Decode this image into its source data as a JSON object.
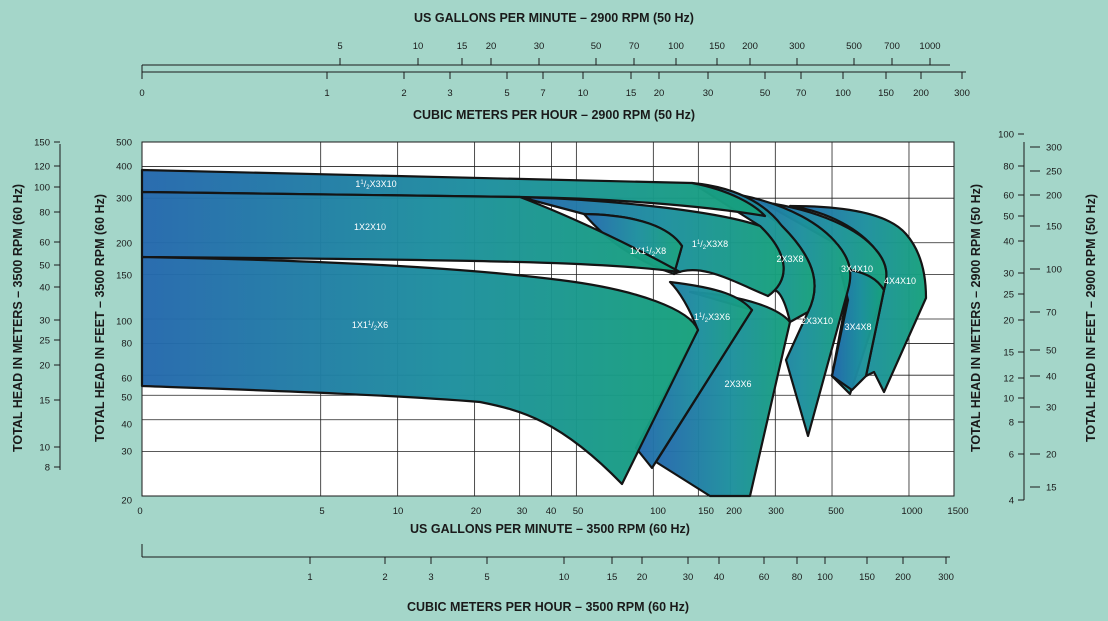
{
  "chart_data": {
    "type": "area",
    "xlabel_bottom": "US GALLONS PER MINUTE – 3500 RPM (60 Hz)",
    "xlabel_bottom_metric": "CUBIC METERS PER HOUR – 3500 RPM (60 Hz)",
    "xlabel_top": "US GALLONS PER MINUTE – 2900 RPM (50 Hz)",
    "xlabel_top_metric": "CUBIC METERS PER HOUR – 2900 RPM (50 Hz)",
    "ylabel_left_feet": "TOTAL HEAD IN FEET – 3500 RPM (60 Hz)",
    "ylabel_left_meters": "TOTAL HEAD IN METERS – 3500 RPM (60 Hz)",
    "ylabel_right_meters": "TOTAL HEAD IN METERS – 2900 RPM (50 Hz)",
    "ylabel_right_feet": "TOTAL HEAD IN FEET – 2900 RPM (50 Hz)",
    "x_scale": "log",
    "y_scale": "log",
    "xlim_gpm": [
      1,
      1500
    ],
    "ylim_feet": [
      20,
      500
    ],
    "grid": true,
    "colors": {
      "gradient_start": "#2468ad",
      "gradient_end": "#16a17b",
      "background": "#a4d6c9"
    },
    "ticks": {
      "gpm_60": [
        "0",
        "5",
        "10",
        "20",
        "30",
        "40",
        "50",
        "100",
        "150",
        "200",
        "300",
        "500",
        "1000",
        "1500"
      ],
      "m3h_60": [
        "1",
        "2",
        "3",
        "5",
        "10",
        "15",
        "20",
        "30",
        "40",
        "60",
        "80",
        "100",
        "150",
        "200",
        "300"
      ],
      "gpm_50": [
        "5",
        "10",
        "15",
        "20",
        "30",
        "50",
        "70",
        "100",
        "150",
        "200",
        "300",
        "500",
        "700",
        "1000"
      ],
      "m3h_50": [
        "0",
        "1",
        "2",
        "3",
        "5",
        "7",
        "10",
        "15",
        "20",
        "30",
        "50",
        "70",
        "100",
        "150",
        "200",
        "300"
      ],
      "feet_60": [
        "20",
        "30",
        "40",
        "50",
        "60",
        "80",
        "100",
        "150",
        "200",
        "300",
        "400",
        "500"
      ],
      "meters_60": [
        "8",
        "10",
        "15",
        "20",
        "25",
        "30",
        "40",
        "50",
        "60",
        "80",
        "100",
        "120",
        "150"
      ],
      "meters_50": [
        "4",
        "6",
        "8",
        "10",
        "12",
        "15",
        "20",
        "25",
        "30",
        "40",
        "50",
        "60",
        "80",
        "100"
      ],
      "feet_50": [
        "15",
        "20",
        "30",
        "40",
        "50",
        "70",
        "100",
        "150",
        "200",
        "250",
        "300"
      ]
    },
    "series": [
      {
        "name": "1X1½X6",
        "label_parts": [
          "1X1",
          "1",
          "/",
          "2",
          "X6"
        ],
        "top": [
          [
            1,
            165
          ],
          [
            30,
            160
          ],
          [
            100,
            140
          ]
        ],
        "shutoff_head_ft": 165,
        "max_flow_gpm": 100,
        "min_head_ft": 38
      },
      {
        "name": "1X2X10",
        "label_parts": [
          "1X2X10"
        ],
        "top": [
          [
            1,
            320
          ],
          [
            30,
            315
          ],
          [
            100,
            300
          ]
        ],
        "shutoff_head_ft": 320,
        "max_flow_gpm": 100,
        "min_head_ft": 165
      },
      {
        "name": "1½X3X10",
        "label_parts": [
          "1",
          "1",
          "/",
          "2",
          "X3X10"
        ],
        "top": [
          [
            1,
            380
          ],
          [
            150,
            355
          ],
          [
            250,
            340
          ]
        ],
        "shutoff_head_ft": 380,
        "max_flow_gpm": 280,
        "min_head_ft": 320
      },
      {
        "name": "1X1½X8",
        "label_parts": [
          "1X1",
          "1",
          "/",
          "2",
          "X8"
        ],
        "top": [
          [
            40,
            265
          ],
          [
            100,
            245
          ]
        ],
        "max_flow_gpm": 120,
        "min_head_ft": 210
      },
      {
        "name": "1½X3X8",
        "label_parts": [
          "1",
          "1",
          "/",
          "2",
          "X3X8"
        ],
        "top": [
          [
            30,
            315
          ],
          [
            120,
            275
          ],
          [
            200,
            250
          ]
        ],
        "max_flow_gpm": 280,
        "min_head_ft": 165
      },
      {
        "name": "1½X3X6",
        "label_parts": [
          "1",
          "1",
          "/",
          "2",
          "X3X6"
        ],
        "top": [
          [
            60,
            150
          ],
          [
            120,
            140
          ]
        ],
        "max_flow_gpm": 175,
        "min_head_ft": 32
      },
      {
        "name": "2X3X6",
        "label_parts": [
          "2X3X6"
        ],
        "top": [
          [
            60,
            150
          ],
          [
            200,
            120
          ]
        ],
        "max_flow_gpm": 300,
        "min_head_ft": 20
      },
      {
        "name": "2X3X8",
        "label_parts": [
          "2X3X8"
        ],
        "top": [
          [
            100,
            315
          ],
          [
            250,
            300
          ]
        ],
        "max_flow_gpm": 400,
        "min_head_ft": 150
      },
      {
        "name": "2X3X10",
        "label_parts": [
          "2X3X10"
        ],
        "top": [
          [
            200,
            350
          ],
          [
            350,
            300
          ]
        ],
        "max_flow_gpm": 500,
        "min_head_ft": 35
      },
      {
        "name": "3X4X10",
        "label_parts": [
          "3X4X10"
        ],
        "top": [
          [
            250,
            330
          ],
          [
            500,
            280
          ]
        ],
        "max_flow_gpm": 700,
        "min_head_ft": 65
      },
      {
        "name": "3X4X8",
        "label_parts": [
          "3X4X8"
        ],
        "top": [
          [
            300,
            200
          ],
          [
            500,
            170
          ]
        ],
        "max_flow_gpm": 600,
        "min_head_ft": 52
      },
      {
        "name": "4X4X10",
        "label_parts": [
          "4X4X10"
        ],
        "top": [
          [
            300,
            340
          ],
          [
            700,
            300
          ]
        ],
        "max_flow_gpm": 1100,
        "min_head_ft": 55
      }
    ]
  }
}
